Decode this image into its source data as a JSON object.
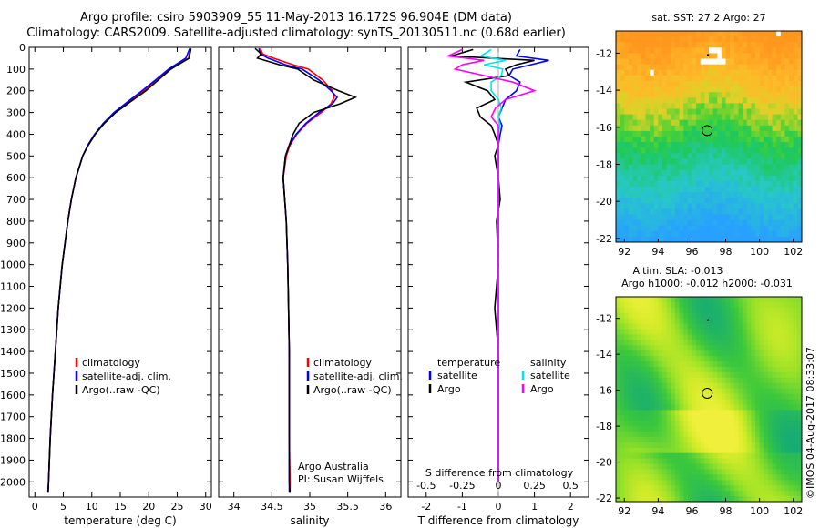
{
  "header": {
    "line1": "Argo profile: csiro 5903909_55 11-May-2013 16.172S 96.904E (DM data)",
    "line2": "Climatology: CARS2009. Satellite-adjusted climatology: synTS_20130511.nc (0.68d earlier)"
  },
  "colors": {
    "climatology": "#ff0000",
    "satellite": "#0000ff",
    "argo": "#000000",
    "argo_salinity": "#ff00ff",
    "satellite_salinity": "#00e5ee"
  },
  "depth_ticks": [
    "0",
    "100",
    "200",
    "300",
    "400",
    "500",
    "600",
    "700",
    "800",
    "900",
    "1000",
    "1100",
    "1200",
    "1300",
    "1400",
    "1500",
    "1600",
    "1700",
    "1800",
    "1900",
    "2000"
  ],
  "chart_data": [
    {
      "type": "line",
      "name": "temperature-profile",
      "xlabel": "temperature (deg C)",
      "xlim": [
        -1,
        31
      ],
      "ylim": [
        2070,
        0
      ],
      "xticks": [
        "0",
        "5",
        "10",
        "15",
        "20",
        "25",
        "30"
      ],
      "legend": [
        "climatology",
        "satellite-adj. clim.",
        "Argo(..raw -QC)"
      ],
      "y": [
        5,
        50,
        100,
        150,
        200,
        250,
        300,
        350,
        400,
        450,
        500,
        600,
        700,
        800,
        900,
        1000,
        1200,
        1400,
        1600,
        1800,
        2000,
        2050
      ],
      "series": [
        {
          "name": "climatology",
          "values": [
            27.3,
            27.0,
            23.8,
            21.5,
            19.2,
            16.5,
            14.0,
            12.1,
            10.5,
            9.3,
            8.4,
            7.2,
            6.4,
            5.8,
            5.3,
            4.8,
            4.1,
            3.6,
            3.1,
            2.7,
            2.4,
            2.3
          ]
        },
        {
          "name": "satellite-adj. clim.",
          "values": [
            27.2,
            26.5,
            23.5,
            21.2,
            18.8,
            16.3,
            13.9,
            12.0,
            10.5,
            9.3,
            8.4,
            7.2,
            6.4,
            5.8,
            5.3,
            4.8,
            4.1,
            3.6,
            3.1,
            2.7,
            2.4,
            2.3
          ]
        },
        {
          "name": "Argo(..raw -QC)",
          "values": [
            27.4,
            27.1,
            23.9,
            21.7,
            19.5,
            16.8,
            14.2,
            12.2,
            10.6,
            9.4,
            8.4,
            7.2,
            6.4,
            5.8,
            5.3,
            4.8,
            4.1,
            3.6,
            3.1,
            2.7,
            2.4,
            2.35
          ]
        }
      ]
    },
    {
      "type": "line",
      "name": "salinity-profile",
      "xlabel": "salinity",
      "xlim": [
        33.8,
        36.2
      ],
      "ylim": [
        2070,
        0
      ],
      "xticks": [
        "34",
        "34.5",
        "35",
        "35.5",
        "36"
      ],
      "legend": [
        "climatology",
        "satellite-adj. clim.",
        "Argo(..raw -QC)"
      ],
      "annotation": [
        "Argo Australia",
        "PI: Susan Wijffels"
      ],
      "y": [
        5,
        30,
        50,
        80,
        100,
        150,
        200,
        230,
        260,
        300,
        350,
        400,
        450,
        500,
        600,
        700,
        800,
        1000,
        1200,
        1400,
        1600,
        1800,
        2000,
        2050
      ],
      "series": [
        {
          "name": "climatology",
          "values": [
            34.35,
            34.38,
            34.52,
            34.78,
            34.98,
            35.17,
            35.3,
            35.32,
            35.28,
            35.15,
            34.96,
            34.83,
            34.74,
            34.69,
            34.65,
            34.67,
            34.69,
            34.71,
            34.72,
            34.73,
            34.73,
            34.73,
            34.74,
            34.74
          ]
        },
        {
          "name": "satellite-adj. clim.",
          "values": [
            34.33,
            34.35,
            34.45,
            34.68,
            34.9,
            35.12,
            35.28,
            35.36,
            35.3,
            35.12,
            34.95,
            34.82,
            34.73,
            34.68,
            34.65,
            34.67,
            34.69,
            34.71,
            34.72,
            34.73,
            34.73,
            34.73,
            34.73,
            34.73
          ]
        },
        {
          "name": "Argo(..raw -QC)",
          "values": [
            34.28,
            34.36,
            34.31,
            34.6,
            34.84,
            35.05,
            35.38,
            35.6,
            35.4,
            35.05,
            34.86,
            34.78,
            34.73,
            34.68,
            34.65,
            34.67,
            34.69,
            34.71,
            34.72,
            34.73,
            34.73,
            34.73,
            34.73,
            34.74
          ]
        }
      ]
    },
    {
      "type": "line",
      "name": "difference-profile",
      "xlabel": "T difference from climatology",
      "xlabel2": "S difference from climatology",
      "xlim": [
        -2.5,
        2.5
      ],
      "ylim": [
        2070,
        0
      ],
      "xticks": [
        "-2",
        "-1",
        "0",
        "1",
        "2"
      ],
      "xticks2": [
        "-0.5",
        "-0.25",
        "0",
        "0.25",
        "0.5"
      ],
      "legend_titles": [
        "temperature",
        "salinity"
      ],
      "legend": [
        "satellite",
        "Argo",
        "satellite",
        "Argo"
      ],
      "y": [
        10,
        40,
        60,
        80,
        100,
        130,
        160,
        200,
        240,
        280,
        320,
        360,
        400,
        450,
        500,
        600,
        700,
        800,
        1000,
        1200,
        1400,
        1600,
        1800,
        2000
      ],
      "series": [
        {
          "name": "temperature satellite",
          "values": [
            0.6,
            0.5,
            1.4,
            0.9,
            0.4,
            0.3,
            0.6,
            0.5,
            0.2,
            0.1,
            0.0,
            0.1,
            0.05,
            0.0,
            0.0,
            0.0,
            0.0,
            0.0,
            0.0,
            0.0,
            0.0,
            0.0,
            0.0,
            0.0
          ]
        },
        {
          "name": "temperature Argo",
          "values": [
            -0.7,
            -1.3,
            1.0,
            0.5,
            0.2,
            0.3,
            -0.9,
            -0.3,
            -0.1,
            -0.6,
            -0.5,
            -0.2,
            -0.1,
            0.0,
            -0.1,
            0.0,
            0.05,
            -0.05,
            0.0,
            -0.1,
            0.0,
            0.0,
            0.0,
            0.0
          ]
        },
        {
          "name": "salinity satellite",
          "values": [
            -0.05,
            -0.12,
            0.05,
            -0.1,
            0.03,
            0.02,
            -0.05,
            -0.05,
            0.0,
            0.02,
            0.0,
            0.01,
            0.0,
            0.0,
            0.0,
            0.0,
            0.0,
            0.0,
            0.0,
            0.0,
            0.0,
            0.0,
            0.0,
            0.0
          ]
        },
        {
          "name": "salinity Argo",
          "values": [
            -0.25,
            -0.35,
            -0.1,
            -0.25,
            -0.3,
            -0.1,
            0.1,
            0.25,
            0.05,
            -0.02,
            -0.05,
            0.0,
            0.0,
            0.0,
            0.0,
            0.0,
            0.0,
            0.0,
            0.0,
            0.0,
            0.0,
            0.0,
            0.0,
            0.0
          ]
        }
      ]
    },
    {
      "type": "heatmap",
      "name": "sst-map",
      "title": "sat. SST: 27.2 Argo: 27",
      "xlim": [
        91.5,
        102.5
      ],
      "ylim": [
        -22.2,
        -10.8
      ],
      "xticks": [
        "92",
        "94",
        "96",
        "98",
        "100",
        "102"
      ],
      "yticks": [
        "-12",
        "-14",
        "-16",
        "-18",
        "-20",
        "-22"
      ],
      "argo_position": [
        96.904,
        -16.172
      ]
    },
    {
      "type": "heatmap",
      "name": "sla-map",
      "title": "Altim. SLA: -0.013",
      "subtitle": "Argo h1000: -0.012 h2000: -0.031",
      "xlim": [
        91.5,
        102.5
      ],
      "ylim": [
        -22.2,
        -10.8
      ],
      "xticks": [
        "92",
        "94",
        "96",
        "98",
        "100",
        "102"
      ],
      "yticks": [
        "-12",
        "-14",
        "-16",
        "-18",
        "-20",
        "-22"
      ],
      "argo_position": [
        96.904,
        -16.172
      ]
    }
  ],
  "footer": {
    "stamp": "©IMOS 04-Aug-2017 08:33:07"
  }
}
